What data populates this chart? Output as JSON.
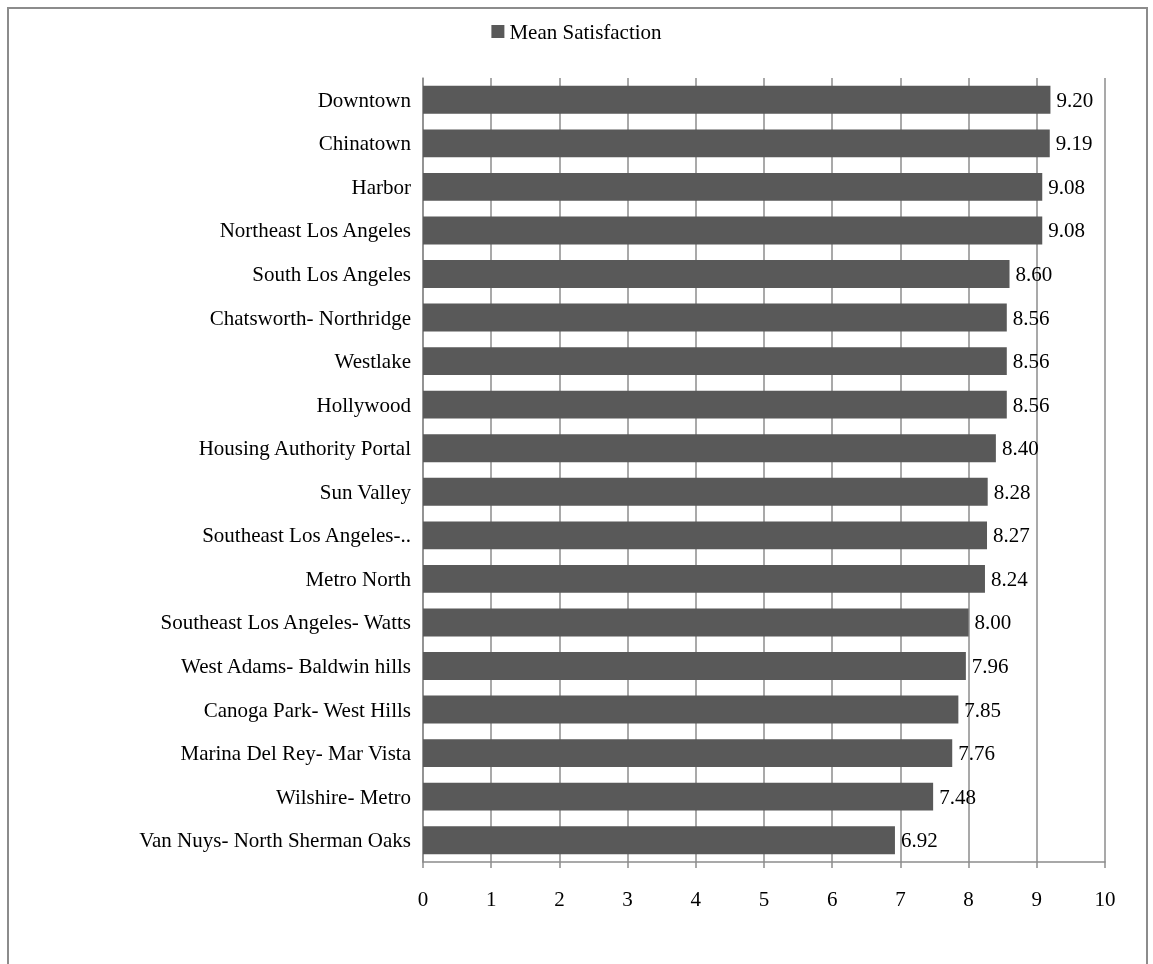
{
  "chart_data": {
    "type": "bar",
    "orientation": "horizontal",
    "categories": [
      "Downtown",
      "Chinatown",
      "Harbor",
      "Northeast Los Angeles",
      "South Los Angeles",
      "Chatsworth- Northridge",
      "Westlake",
      "Hollywood",
      "Housing Authority Portal",
      "Sun Valley",
      "Southeast Los Angeles-..",
      "Metro North",
      "Southeast Los Angeles- Watts",
      "West Adams- Baldwin hills",
      "Canoga Park- West Hills",
      "Marina Del Rey- Mar Vista",
      "Wilshire- Metro",
      "Van Nuys- North Sherman Oaks"
    ],
    "series": [
      {
        "name": "Mean Satisfaction",
        "color": "#595959",
        "values": [
          9.2,
          9.19,
          9.08,
          9.08,
          8.6,
          8.56,
          8.56,
          8.56,
          8.4,
          8.28,
          8.27,
          8.24,
          8.0,
          7.96,
          7.85,
          7.76,
          7.48,
          6.92
        ],
        "value_labels": [
          "9.20",
          "9.19",
          "9.08",
          "9.08",
          "8.60",
          "8.56",
          "8.56",
          "8.56",
          "8.40",
          "8.28",
          "8.27",
          "8.24",
          "8.00",
          "7.96",
          "7.85",
          "7.76",
          "7.48",
          "6.92"
        ]
      }
    ],
    "xlim": [
      0,
      10
    ],
    "xticks": [
      0,
      1,
      2,
      3,
      4,
      5,
      6,
      7,
      8,
      9,
      10
    ],
    "grid": "x",
    "legend": "top"
  }
}
